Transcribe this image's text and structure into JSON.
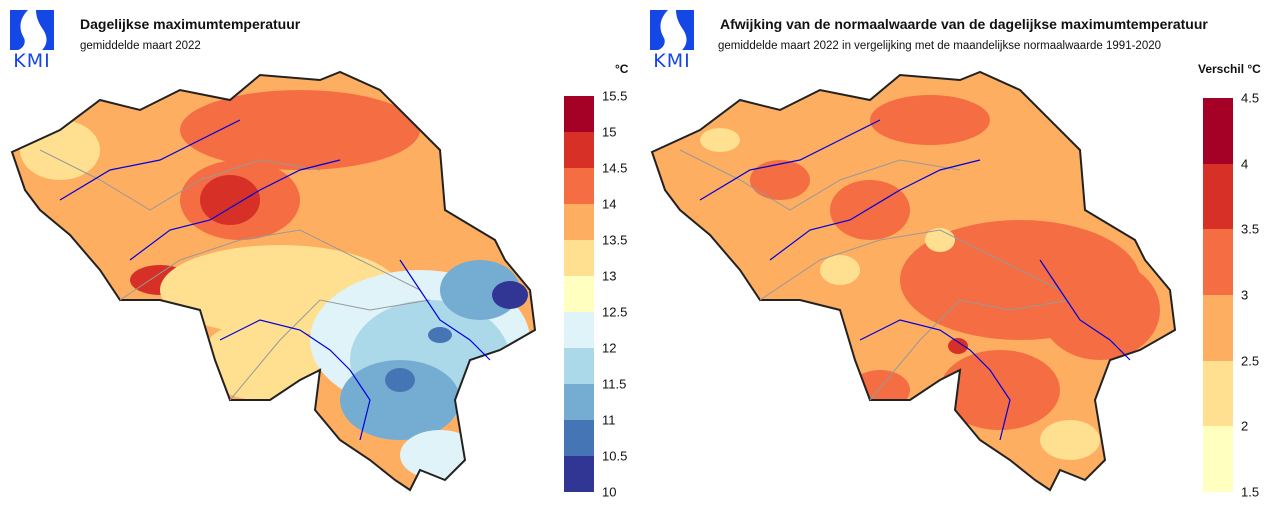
{
  "left": {
    "logo_text": "KMI",
    "title": "Dagelijkse maximumtemperatuur",
    "subtitle": "gemiddelde maart 2022",
    "unit": "°C",
    "legend": {
      "ticks": [
        "15.5",
        "15",
        "14.5",
        "14",
        "13.5",
        "13",
        "12.5",
        "12",
        "11.5",
        "11",
        "10.5",
        "10"
      ],
      "colors": [
        "#a50026",
        "#d73027",
        "#f46d43",
        "#fdae61",
        "#fee090",
        "#ffffbf",
        "#e0f3f8",
        "#abd9e9",
        "#74add1",
        "#4575b4",
        "#313695"
      ]
    }
  },
  "right": {
    "logo_text": "KMI",
    "title": "Afwijking van de normaalwaarde van de dagelijkse maximumtemperatuur",
    "subtitle": "gemiddelde maart 2022 in vergelijking met de maandelijkse normaalwaarde 1991-2020",
    "unit": "Verschil °C",
    "legend": {
      "ticks": [
        "4.5",
        "4",
        "3.5",
        "3",
        "2.5",
        "2",
        "1.5"
      ],
      "colors": [
        "#a50026",
        "#d73027",
        "#f46d43",
        "#fdae61",
        "#fee090",
        "#ffffbf"
      ]
    }
  }
}
